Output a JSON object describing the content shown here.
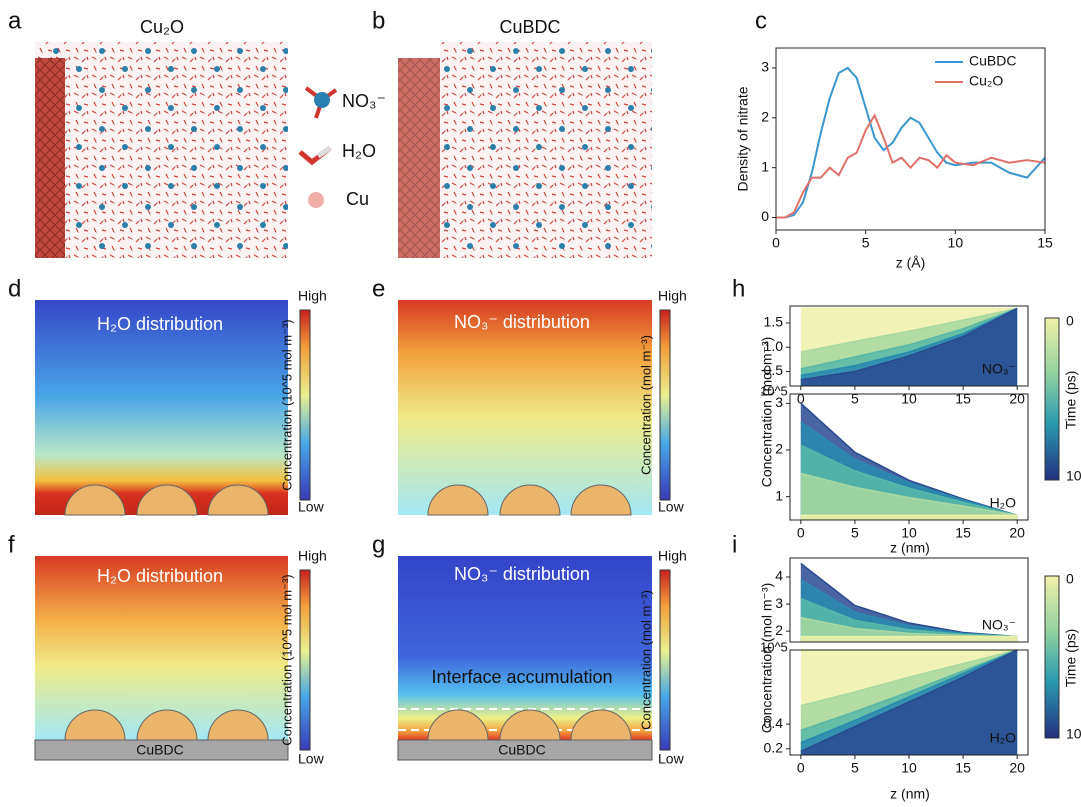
{
  "figure": {
    "a": {
      "label": "a",
      "title": "Cu₂O"
    },
    "b": {
      "label": "b",
      "title": "CuBDC"
    },
    "legend": [
      "NO₃⁻",
      "H₂O",
      "Cu"
    ],
    "c": {
      "label": "c"
    },
    "d": {
      "label": "d",
      "title": "H₂O distribution",
      "colorbar": "Concentration (10^5 mol m⁻³)",
      "high": "High",
      "low": "Low"
    },
    "e": {
      "label": "e",
      "title": "NO₃⁻ distribution",
      "colorbar": "Concentration (mol m⁻³)",
      "high": "High",
      "low": "Low"
    },
    "f": {
      "label": "f",
      "title": "H₂O distribution",
      "colorbar": "Concentration (10^5 mol m⁻³)",
      "high": "High",
      "low": "Low",
      "substrate": "CuBDC"
    },
    "g": {
      "label": "g",
      "title": "NO₃⁻ distribution",
      "colorbar": "Concentration (mol m⁻³)",
      "high": "High",
      "low": "Low",
      "substrate": "CuBDC",
      "annotation": "Interface accumulation"
    },
    "h": {
      "label": "h",
      "ylabel": "Concentration (mol m⁻³)",
      "xlabel": "z (nm)",
      "colorbar_title": "Time (ps)",
      "colorbar_ticks": [
        "0",
        "10"
      ]
    },
    "i": {
      "label": "i",
      "ylabel": "Concentration (mol m⁻³)",
      "xlabel": "z (nm)",
      "colorbar_title": "Time (ps)",
      "colorbar_ticks": [
        "0",
        "10"
      ]
    }
  },
  "chart_data": [
    {
      "type": "line",
      "ylabel": "Density of nitrate",
      "xlabel": "z (Å)",
      "xlim": [
        0,
        15
      ],
      "ylim": [
        -0.25,
        3.4
      ],
      "xticks": [
        0,
        5,
        10,
        15
      ],
      "yticks": [
        0,
        1,
        2,
        3
      ],
      "x": [
        0,
        0.5,
        1,
        1.5,
        2,
        2.5,
        3,
        3.5,
        4,
        4.5,
        5,
        5.5,
        6,
        6.5,
        7,
        7.5,
        8,
        8.5,
        9,
        9.5,
        10,
        11,
        12,
        13,
        14,
        15
      ],
      "series": [
        {
          "name": "CuBDC",
          "color": "#3a96cf",
          "values": [
            0,
            0,
            0.05,
            0.3,
            0.9,
            1.7,
            2.4,
            2.9,
            3.0,
            2.8,
            2.2,
            1.6,
            1.35,
            1.5,
            1.8,
            2.0,
            1.9,
            1.6,
            1.3,
            1.1,
            1.05,
            1.1,
            1.1,
            0.9,
            0.8,
            1.2
          ]
        },
        {
          "name": "Cu₂O",
          "color": "#e0706a",
          "values": [
            0,
            0,
            0.1,
            0.5,
            0.8,
            0.8,
            1.0,
            0.85,
            1.2,
            1.3,
            1.75,
            2.05,
            1.6,
            1.1,
            1.2,
            1.0,
            1.2,
            1.15,
            1.0,
            1.25,
            1.1,
            1.05,
            1.2,
            1.1,
            1.15,
            1.1
          ]
        }
      ]
    },
    {
      "type": "area",
      "annotation": "NO₃⁻",
      "xlim": [
        -1,
        21
      ],
      "ylim": [
        0.2,
        1.85
      ],
      "xticks": [
        0,
        5,
        10,
        15,
        20
      ],
      "yticks": [
        0.5,
        {
          "value": 1,
          "label": "1.0"
        },
        1.5
      ],
      "x": [
        0,
        5,
        10,
        15,
        20
      ],
      "series": [
        {
          "color": "#eef0a8",
          "values": [
            1.8,
            1.8,
            1.8,
            1.8,
            1.8
          ]
        },
        {
          "color": "#a8d8a0",
          "values": [
            0.9,
            1.12,
            1.33,
            1.56,
            1.8
          ]
        },
        {
          "color": "#58b8a8",
          "values": [
            0.55,
            0.8,
            1.05,
            1.38,
            1.8
          ]
        },
        {
          "color": "#2a8ab0",
          "values": [
            0.42,
            0.62,
            0.9,
            1.28,
            1.8
          ]
        },
        {
          "color": "#2a4a90",
          "values": [
            0.33,
            0.5,
            0.82,
            1.22,
            1.8
          ]
        }
      ]
    },
    {
      "type": "area",
      "annotation": "H₂O",
      "exponent": "10^5",
      "xlim": [
        -1,
        21
      ],
      "ylim": [
        0.5,
        3.2
      ],
      "xticks": [
        0,
        5,
        10,
        15,
        20
      ],
      "yticks": [
        1,
        2,
        3
      ],
      "x": [
        0,
        5,
        10,
        15,
        20
      ],
      "series": [
        {
          "color": "#2a4a90",
          "values": [
            3.0,
            1.95,
            1.35,
            0.95,
            0.6
          ]
        },
        {
          "color": "#2a8ab0",
          "values": [
            2.6,
            1.8,
            1.3,
            0.93,
            0.6
          ]
        },
        {
          "color": "#58b8a8",
          "values": [
            2.1,
            1.55,
            1.18,
            0.88,
            0.6
          ]
        },
        {
          "color": "#a8d8a0",
          "values": [
            1.5,
            1.2,
            0.98,
            0.8,
            0.6
          ]
        },
        {
          "color": "#eef0a8",
          "values": [
            0.6,
            0.6,
            0.6,
            0.6,
            0.6
          ]
        }
      ]
    },
    {
      "type": "area",
      "annotation": "NO₃⁻",
      "xlim": [
        -1,
        21
      ],
      "ylim": [
        1.6,
        4.7
      ],
      "xticks": [],
      "yticks": [
        2,
        3,
        4
      ],
      "x": [
        0,
        5,
        10,
        15,
        20
      ],
      "series": [
        {
          "color": "#2a4a90",
          "values": [
            4.5,
            2.95,
            2.3,
            1.95,
            1.8
          ]
        },
        {
          "color": "#2a8ab0",
          "values": [
            3.9,
            2.7,
            2.2,
            1.92,
            1.8
          ]
        },
        {
          "color": "#58b8a8",
          "values": [
            3.2,
            2.4,
            2.05,
            1.88,
            1.8
          ]
        },
        {
          "color": "#a8d8a0",
          "values": [
            2.5,
            2.1,
            1.92,
            1.84,
            1.8
          ]
        },
        {
          "color": "#eef0a8",
          "values": [
            1.8,
            1.8,
            1.8,
            1.8,
            1.8
          ]
        }
      ]
    },
    {
      "type": "area",
      "annotation": "H₂O",
      "exponent": "10^5",
      "xlim": [
        -1,
        21
      ],
      "ylim": [
        0.15,
        1.0
      ],
      "xticks": [
        0,
        5,
        10,
        15,
        20
      ],
      "yticks": [
        0.2,
        0.4
      ],
      "x": [
        0,
        5,
        10,
        15,
        20
      ],
      "series": [
        {
          "color": "#eef0a8",
          "values": [
            1,
            1,
            1,
            1,
            1
          ]
        },
        {
          "color": "#a8d8a0",
          "values": [
            0.55,
            0.66,
            0.78,
            0.89,
            1
          ]
        },
        {
          "color": "#58b8a8",
          "values": [
            0.35,
            0.5,
            0.66,
            0.83,
            1
          ]
        },
        {
          "color": "#2a8ab0",
          "values": [
            0.25,
            0.43,
            0.62,
            0.81,
            1
          ]
        },
        {
          "color": "#2a4a90",
          "values": [
            0.18,
            0.38,
            0.58,
            0.78,
            1
          ]
        }
      ]
    }
  ]
}
